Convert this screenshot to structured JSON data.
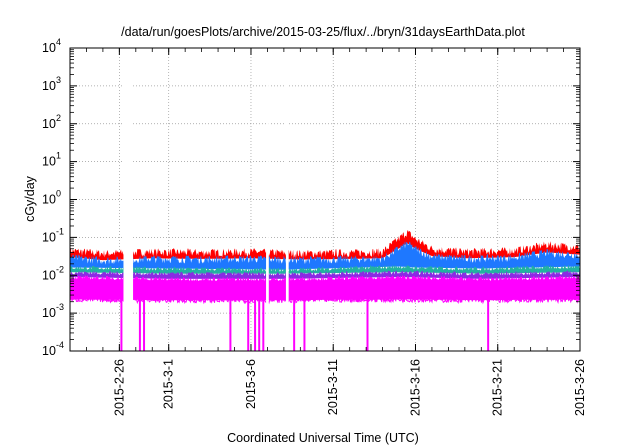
{
  "chart_data": {
    "type": "line",
    "title": "/data/run/goesPlots/archive/2015-03-25/flux/../bryn/31daysEarthData.plot",
    "xlabel": "Coordinated Universal Time (UTC)",
    "ylabel": "cGy/day",
    "y_scale": "log",
    "ylim": [
      0.0001,
      10000
    ],
    "xlim": [
      "2015-02-23T00:00",
      "2015-03-26T00:00"
    ],
    "grid": true,
    "legend": "none",
    "y_ticks": [
      {
        "value": 0.0001,
        "base": "10",
        "exp": "-4"
      },
      {
        "value": 0.001,
        "base": "10",
        "exp": "-3"
      },
      {
        "value": 0.01,
        "base": "10",
        "exp": "-2"
      },
      {
        "value": 0.1,
        "base": "10",
        "exp": "-1"
      },
      {
        "value": 1,
        "base": "10",
        "exp": "0"
      },
      {
        "value": 10,
        "base": "10",
        "exp": "1"
      },
      {
        "value": 100,
        "base": "10",
        "exp": "2"
      },
      {
        "value": 1000,
        "base": "10",
        "exp": "3"
      },
      {
        "value": 10000,
        "base": "10",
        "exp": "4"
      }
    ],
    "x_ticks": [
      {
        "date": "2015-02-26",
        "label": "2015-2-26"
      },
      {
        "date": "2015-03-01",
        "label": "2015-3-1"
      },
      {
        "date": "2015-03-06",
        "label": "2015-3-6"
      },
      {
        "date": "2015-03-11",
        "label": "2015-3-11"
      },
      {
        "date": "2015-03-16",
        "label": "2015-3-16"
      },
      {
        "date": "2015-03-21",
        "label": "2015-3-21"
      },
      {
        "date": "2015-03-26",
        "label": "2015-3-26"
      }
    ],
    "gaps": [
      [
        "2015-02-26T06:00",
        "2015-02-26T20:00"
      ],
      [
        "2015-03-06T22:00",
        "2015-03-07T02:00"
      ],
      [
        "2015-03-08T03:00",
        "2015-03-08T07:00"
      ]
    ],
    "series": [
      {
        "color": "#ff0000",
        "x": [
          "2015-02-23",
          "2015-02-25",
          "2015-02-28",
          "2015-03-03",
          "2015-03-06",
          "2015-03-09",
          "2015-03-12",
          "2015-03-14",
          "2015-03-15T12:00",
          "2015-03-16",
          "2015-03-17",
          "2015-03-19",
          "2015-03-22",
          "2015-03-24",
          "2015-03-26"
        ],
        "y": [
          0.045,
          0.038,
          0.042,
          0.04,
          0.042,
          0.038,
          0.04,
          0.042,
          0.14,
          0.09,
          0.05,
          0.042,
          0.045,
          0.065,
          0.055
        ]
      },
      {
        "color": "#1e78ff",
        "x": [
          "2015-02-23",
          "2015-02-25",
          "2015-02-28",
          "2015-03-03",
          "2015-03-06",
          "2015-03-09",
          "2015-03-12",
          "2015-03-14",
          "2015-03-15T12:00",
          "2015-03-16",
          "2015-03-17",
          "2015-03-19",
          "2015-03-22",
          "2015-03-24",
          "2015-03-26"
        ],
        "y": [
          0.03,
          0.025,
          0.028,
          0.027,
          0.028,
          0.026,
          0.027,
          0.028,
          0.07,
          0.05,
          0.032,
          0.028,
          0.03,
          0.04,
          0.035
        ]
      },
      {
        "color": "#22b2a0",
        "x": [
          "2015-02-23",
          "2015-03-01",
          "2015-03-08",
          "2015-03-15",
          "2015-03-16",
          "2015-03-20",
          "2015-03-26"
        ],
        "y": [
          0.016,
          0.015,
          0.014,
          0.017,
          0.016,
          0.015,
          0.017
        ]
      },
      {
        "color": "#8a2be2",
        "x": [
          "2015-02-23",
          "2015-03-01",
          "2015-03-08",
          "2015-03-15",
          "2015-03-20",
          "2015-03-26"
        ],
        "y": [
          0.012,
          0.011,
          0.011,
          0.012,
          0.011,
          0.012
        ]
      },
      {
        "color": "#ff00ff",
        "x": [
          "2015-02-23",
          "2015-03-01",
          "2015-03-08",
          "2015-03-15",
          "2015-03-20",
          "2015-03-26"
        ],
        "y": [
          0.009,
          0.008,
          0.008,
          0.009,
          0.008,
          0.009
        ]
      },
      {
        "color": "#ff00ff",
        "x": [
          "2015-02-23",
          "2015-03-01",
          "2015-03-08",
          "2015-03-15",
          "2015-03-20",
          "2015-03-26"
        ],
        "y": [
          0.0023,
          0.0022,
          0.0022,
          0.0023,
          0.0022,
          0.0023
        ]
      }
    ],
    "dropouts": [
      "2015-02-26T03:00",
      "2015-02-27T06:00",
      "2015-02-27T12:00",
      "2015-03-04T18:00",
      "2015-03-05T20:00",
      "2015-03-06T06:00",
      "2015-03-06T12:00",
      "2015-03-06T18:00",
      "2015-03-08T15:00",
      "2015-03-09T06:00",
      "2015-03-13T02:00",
      "2015-03-20T10:00"
    ]
  }
}
